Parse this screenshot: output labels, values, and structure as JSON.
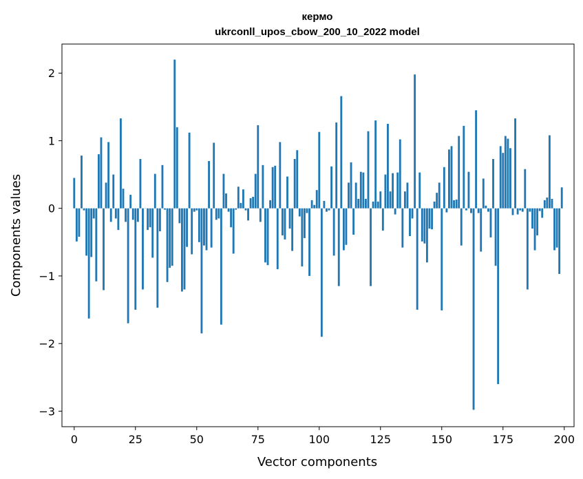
{
  "chart_data": {
    "type": "bar",
    "title": "кермо",
    "subtitle": "ukrconll_upos_cbow_200_10_2022 model",
    "xlabel": "Vector components",
    "ylabel": "Components values",
    "xlim": [
      -5,
      204
    ],
    "ylim": [
      -3.23,
      2.43
    ],
    "xticks": [
      0,
      25,
      50,
      75,
      100,
      125,
      150,
      175,
      200
    ],
    "yticks": [
      -3,
      -2,
      -1,
      0,
      1,
      2
    ],
    "bar_color": "#1f77b4",
    "grid": false,
    "values": [
      0.45,
      -0.49,
      -0.42,
      0.78,
      -0.03,
      -0.7,
      -1.63,
      -0.72,
      -0.15,
      -1.08,
      0.8,
      1.05,
      -1.21,
      0.38,
      0.98,
      -0.2,
      0.5,
      -0.15,
      -0.32,
      1.33,
      0.29,
      -0.2,
      -1.7,
      0.2,
      -0.17,
      -1.5,
      -0.2,
      0.73,
      -1.2,
      0.0,
      -0.32,
      -0.28,
      -0.73,
      0.51,
      -1.47,
      -0.34,
      0.64,
      -0.02,
      -1.09,
      -0.88,
      -0.85,
      2.2,
      1.2,
      -0.22,
      -1.23,
      -1.2,
      -0.57,
      1.12,
      -0.68,
      -0.05,
      -0.03,
      -0.5,
      -1.85,
      -0.55,
      -0.62,
      0.7,
      -0.58,
      0.97,
      -0.17,
      -0.15,
      -1.72,
      0.51,
      0.22,
      -0.05,
      -0.28,
      -0.67,
      -0.02,
      0.32,
      0.08,
      0.28,
      -0.03,
      -0.18,
      0.15,
      0.17,
      0.51,
      1.23,
      -0.2,
      0.64,
      -0.8,
      -0.84,
      0.12,
      0.61,
      0.63,
      -0.9,
      0.98,
      -0.4,
      -0.46,
      0.47,
      -0.3,
      -0.63,
      0.73,
      0.86,
      -0.12,
      -0.86,
      -0.44,
      -0.07,
      -1.0,
      0.12,
      0.05,
      0.27,
      1.13,
      -1.9,
      0.11,
      -0.05,
      -0.03,
      0.62,
      -0.7,
      1.27,
      -1.15,
      1.66,
      -0.62,
      -0.54,
      0.38,
      0.68,
      -0.39,
      0.38,
      0.14,
      0.54,
      0.53,
      0.14,
      1.14,
      -1.15,
      0.1,
      1.3,
      0.1,
      0.25,
      -0.33,
      0.5,
      1.25,
      0.25,
      0.52,
      -0.09,
      0.53,
      1.02,
      -0.58,
      0.25,
      0.38,
      -0.41,
      -0.15,
      1.98,
      -1.5,
      0.53,
      -0.49,
      -0.52,
      -0.8,
      -0.3,
      -0.31,
      0.1,
      0.23,
      0.38,
      -1.51,
      0.61,
      -0.06,
      0.87,
      0.92,
      0.12,
      0.13,
      1.07,
      -0.55,
      1.22,
      -0.03,
      0.54,
      -0.07,
      -2.98,
      1.45,
      -0.07,
      -0.64,
      0.44,
      0.04,
      -0.05,
      -0.43,
      0.73,
      -0.85,
      -2.6,
      0.92,
      0.82,
      1.07,
      1.03,
      0.89,
      -0.1,
      1.33,
      -0.09,
      -0.03,
      -0.05,
      0.58,
      -1.2,
      -0.05,
      -0.3,
      -0.62,
      -0.4,
      -0.04,
      -0.14,
      0.12,
      0.16,
      1.08,
      0.14,
      -0.62,
      -0.58,
      -0.97,
      0.31
    ]
  }
}
